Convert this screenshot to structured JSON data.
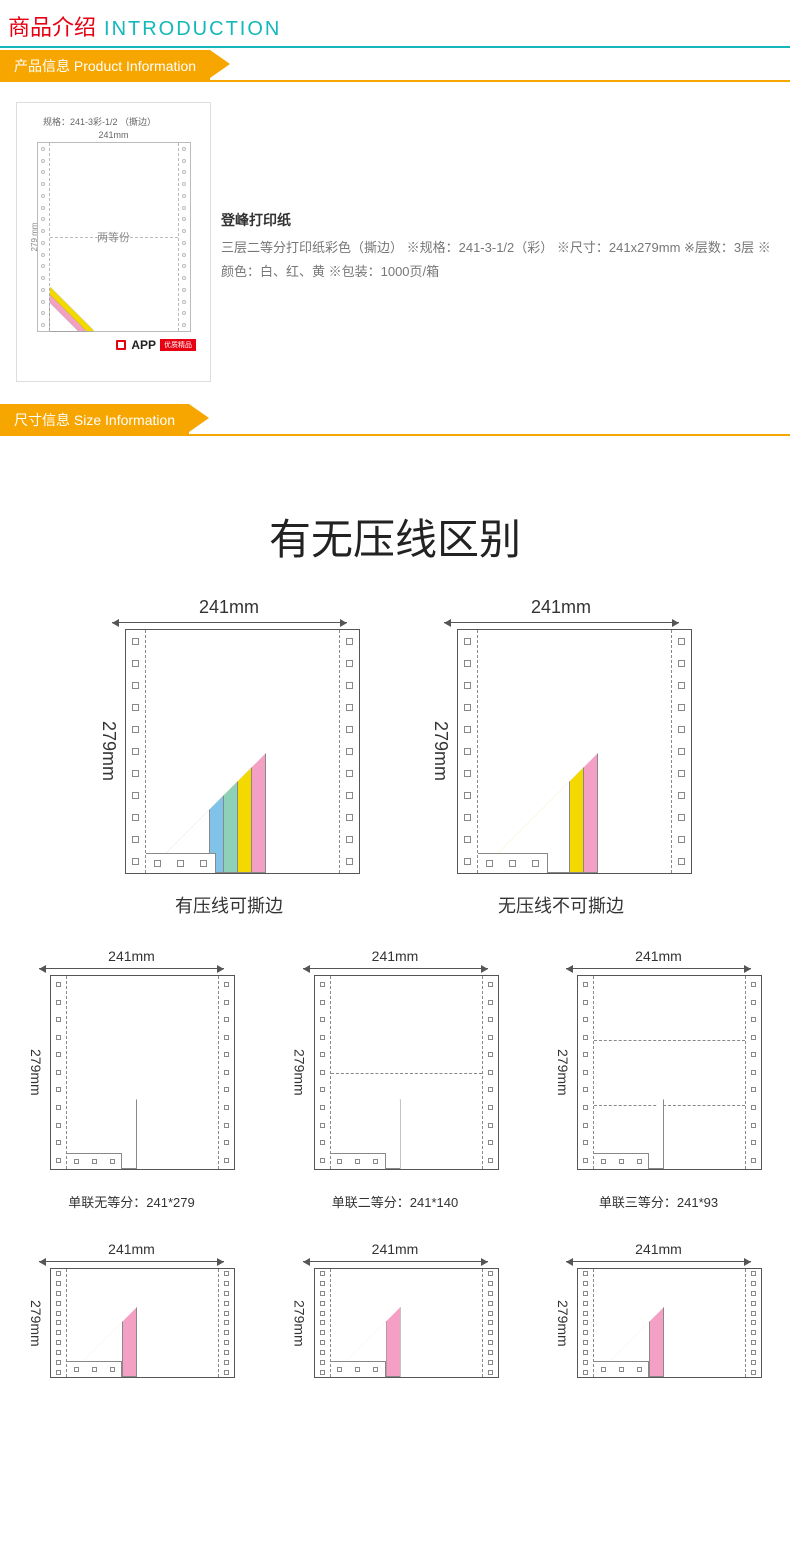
{
  "header": {
    "cn": "商品介绍",
    "en": "INTRODUCTION"
  },
  "ribbon1": "产品信息 Product Information",
  "ribbon2": "尺寸信息 Size Information",
  "thumb": {
    "spec": "规格：241-3彩-1/2 （撕边）",
    "width": "241mm",
    "height": "279 mm",
    "center": "两等份",
    "logo": "APP",
    "tag": "优质精品",
    "fold_colors": [
      "#f4d900",
      "#f49fc4",
      "#ffffff"
    ]
  },
  "desc": {
    "title": "登峰打印纸",
    "body": "三层二等分打印纸彩色（撕边） ※规格：241-3-1/2（彩） ※尺寸：241x279mm ※层数：3层 ※颜色：白、红、黄 ※包装：1000页/箱"
  },
  "big_title": "有无压线区别",
  "diag_lg": {
    "w": "241mm",
    "h": "279mm",
    "a": {
      "caption": "有压线可撕边",
      "plies": [
        {
          "size": 120,
          "fill": "#f49fc4"
        },
        {
          "size": 106,
          "fill": "#f4d900"
        },
        {
          "size": 92,
          "fill": "#8dd1b9"
        },
        {
          "size": 78,
          "fill": "#7fc4e8"
        },
        {
          "size": 64,
          "fill": "#ffffff"
        }
      ]
    },
    "b": {
      "caption": "无压线不可撕边",
      "plies": [
        {
          "size": 120,
          "fill": "#f49fc4"
        },
        {
          "size": 106,
          "fill": "#f4d900"
        },
        {
          "size": 92,
          "fill": "#ffffff"
        }
      ]
    }
  },
  "diag_sm": {
    "w": "241mm",
    "h": "279mm",
    "items": [
      {
        "caption": "单联无等分：241*279",
        "cutlines": []
      },
      {
        "caption": "单联二等分：241*140",
        "cutlines": [
          50
        ]
      },
      {
        "caption": "单联三等分：241*93",
        "cutlines": [
          33.3,
          66.6
        ]
      }
    ],
    "row2_items": [
      {
        "plies": [
          {
            "size": 70,
            "fill": "#f49fc4"
          },
          {
            "size": 56,
            "fill": "#ffffff"
          }
        ]
      },
      {
        "plies": [
          {
            "size": 70,
            "fill": "#f49fc4"
          },
          {
            "size": 56,
            "fill": "#ffffff"
          }
        ]
      },
      {
        "plies": [
          {
            "size": 70,
            "fill": "#f49fc4"
          },
          {
            "size": 56,
            "fill": "#ffffff"
          }
        ]
      }
    ]
  },
  "colors": {
    "accent_red": "#e60012",
    "accent_teal": "#14b8bb",
    "ribbon": "#f7a600",
    "line": "#555555",
    "dash": "#888888"
  }
}
